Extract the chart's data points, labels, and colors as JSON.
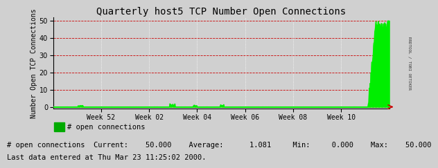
{
  "title": "Quarterly host5 TCP Number Open Connections",
  "ylabel": "Number Open TCP Connections",
  "yticks": [
    0,
    10,
    20,
    30,
    40,
    50
  ],
  "ylim": [
    -1,
    52
  ],
  "xtick_labels": [
    "Week 52",
    "Week 02",
    "Week 04",
    "Week 06",
    "Week 08",
    "Week 10"
  ],
  "bg_color": "#d0d0d0",
  "plot_bg_color": "#d0d0d0",
  "grid_h_color": "#cc0000",
  "grid_v_color": "#ffffff",
  "line_color": "#00ee00",
  "fill_color": "#00ee00",
  "legend_label": "# open connections",
  "legend_color": "#00aa00",
  "stats_text": "# open connections  Current:    50.000    Average:      1.081     Min:     0.000    Max:    50.000",
  "lastdata_text": "Last data entered at Thu Mar 23 11:25:02 2000.",
  "watermark": "RRDTOOL / TOBI OETIKER",
  "arrow_color": "#cc0000",
  "title_fontsize": 10,
  "axis_label_fontsize": 7,
  "tick_fontsize": 7,
  "legend_fontsize": 7.5,
  "stats_fontsize": 7.5,
  "lastdata_fontsize": 7.5
}
